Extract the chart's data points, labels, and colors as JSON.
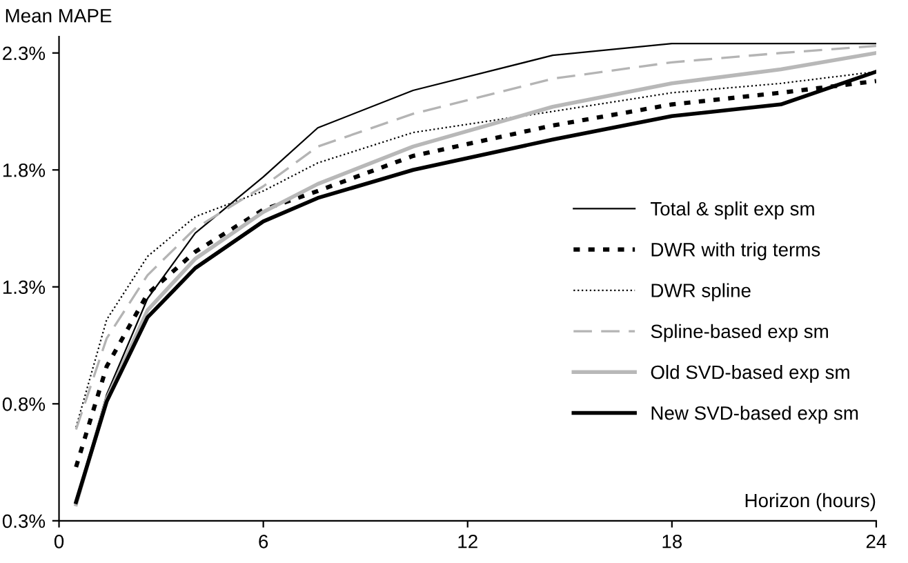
{
  "chart_data": {
    "type": "line",
    "ylabel": "Mean MAPE",
    "xlabel": "Horizon (hours)",
    "x": [
      0.5,
      1.4,
      2.6,
      4,
      6,
      7.6,
      10.4,
      14.5,
      18,
      21.2,
      24
    ],
    "xlim": [
      0,
      24
    ],
    "xticks": [
      0,
      6,
      12,
      18,
      24
    ],
    "ylim": [
      0.3,
      2.37
    ],
    "yticks": [
      {
        "value": 0.3,
        "label": "0.3%"
      },
      {
        "value": 0.8,
        "label": "0.8%"
      },
      {
        "value": 1.3,
        "label": "1.3%"
      },
      {
        "value": 1.8,
        "label": "1.8%"
      },
      {
        "value": 2.3,
        "label": "2.3%"
      }
    ],
    "grid": false,
    "legend": "right",
    "marker": "none",
    "series": [
      {
        "name": "Total & split exp sm",
        "color": "#000000",
        "line_style": "solid",
        "values": [
          0.38,
          0.84,
          1.25,
          1.53,
          1.77,
          1.98,
          2.14,
          2.29,
          2.34,
          2.34,
          2.34
        ]
      },
      {
        "name": "DWR with trig terms",
        "color": "#000000",
        "line_style": "dashed",
        "values": [
          0.53,
          0.96,
          1.27,
          1.45,
          1.63,
          1.71,
          1.86,
          1.99,
          2.08,
          2.13,
          2.18
        ]
      },
      {
        "name": "DWR spline",
        "color": "#000000",
        "line_style": "dotted",
        "values": [
          0.7,
          1.16,
          1.43,
          1.6,
          1.71,
          1.83,
          1.96,
          2.05,
          2.13,
          2.17,
          2.22
        ]
      },
      {
        "name": "Spline-based exp sm",
        "color": "#b4b4b4",
        "line_style": "dashed",
        "values": [
          0.69,
          1.08,
          1.35,
          1.55,
          1.73,
          1.9,
          2.04,
          2.19,
          2.26,
          2.3,
          2.33
        ]
      },
      {
        "name": "Old SVD-based exp sm",
        "color": "#b8b8b8",
        "line_style": "solid",
        "values": [
          0.37,
          0.82,
          1.2,
          1.42,
          1.62,
          1.74,
          1.9,
          2.07,
          2.17,
          2.23,
          2.3
        ]
      },
      {
        "name": "New SVD-based exp sm",
        "color": "#000000",
        "line_style": "solid",
        "values": [
          0.38,
          0.81,
          1.17,
          1.38,
          1.58,
          1.68,
          1.8,
          1.93,
          2.03,
          2.08,
          2.22
        ]
      }
    ]
  }
}
